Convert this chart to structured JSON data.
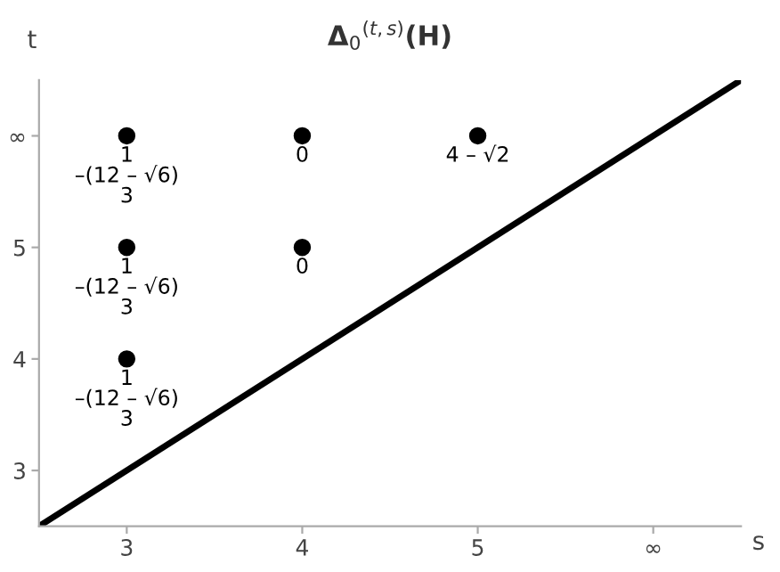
{
  "chart_data": {
    "type": "scatter",
    "title": "Δ$_{0}$$^{(t,s)}$(H)",
    "xlabel": "s",
    "ylabel": "t",
    "xlim": [
      2.5,
      6.5
    ],
    "ylim": [
      2.5,
      6.5
    ],
    "xticks": [
      3,
      4,
      5,
      {
        "value": 6,
        "label": "∞"
      }
    ],
    "yticks": [
      3,
      4,
      5,
      {
        "value": 6,
        "label": "∞"
      }
    ],
    "grid": false,
    "marker": "circle",
    "series": [
      {
        "color": "#000000",
        "x": [
          3,
          4,
          5,
          3,
          4,
          3
        ],
        "values": [
          6,
          6,
          6,
          5,
          5,
          4
        ]
      },
      {
        "type": "line",
        "color": "#000000",
        "x": [
          2.5,
          6.5
        ],
        "values": [
          2.5,
          6.5
        ],
        "marker": "none",
        "line_style": "solid"
      }
    ],
    "annotations": [
      {
        "text": "1\n–(12 – √6)\n3",
        "x": 3,
        "y": 6
      },
      {
        "text": "0",
        "x": 4,
        "y": 6
      },
      {
        "text": "4 – √2",
        "x": 5,
        "y": 6
      },
      {
        "text": "1\n–(12 – √6)\n3",
        "x": 3,
        "y": 5
      },
      {
        "text": "0",
        "x": 4,
        "y": 5
      },
      {
        "text": "1\n–(12 – √6)\n3",
        "x": 3,
        "y": 4
      }
    ]
  }
}
